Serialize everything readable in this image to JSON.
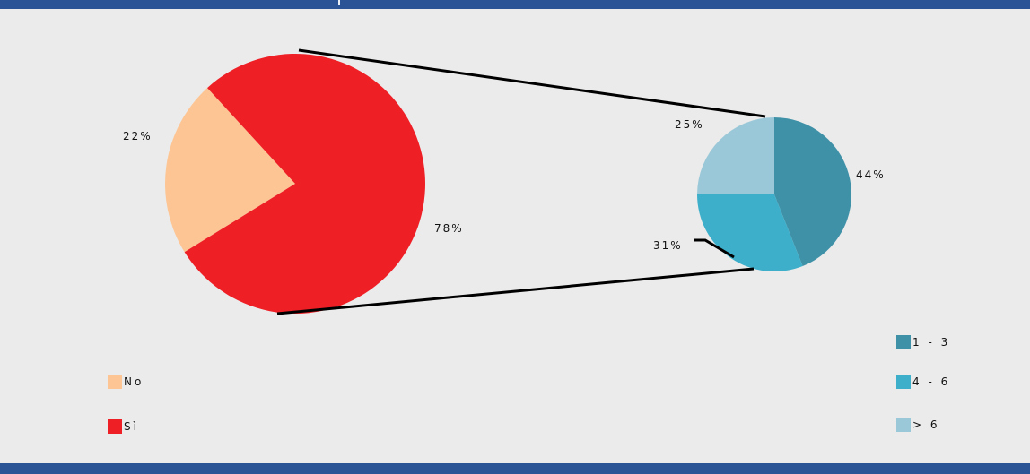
{
  "chart_data": [
    {
      "type": "pie",
      "series": [
        {
          "labels": [
            "No",
            "Sì"
          ],
          "values": [
            22,
            78
          ],
          "value_labels": [
            "22%",
            "78%"
          ],
          "colors": [
            "#fdc593",
            "#ef1f26"
          ]
        }
      ],
      "legend": {
        "placement": "bottom-left",
        "entries": [
          "No",
          "Sì"
        ]
      }
    },
    {
      "type": "pie",
      "series": [
        {
          "labels": [
            "1 - 3",
            "4 - 6",
            "> 6"
          ],
          "values": [
            44,
            31,
            25
          ],
          "value_labels": [
            "44%",
            "31%",
            "25%"
          ],
          "colors": [
            "#3f91a8",
            "#3eafca",
            "#9ac8d8"
          ]
        }
      ],
      "legend": {
        "placement": "bottom-right",
        "entries": [
          "1 - 3",
          "4 - 6",
          "> 6"
        ]
      }
    }
  ],
  "colors": {
    "header_bar": "#2a5496",
    "background": "#ebebeb",
    "connector": "#000000"
  }
}
